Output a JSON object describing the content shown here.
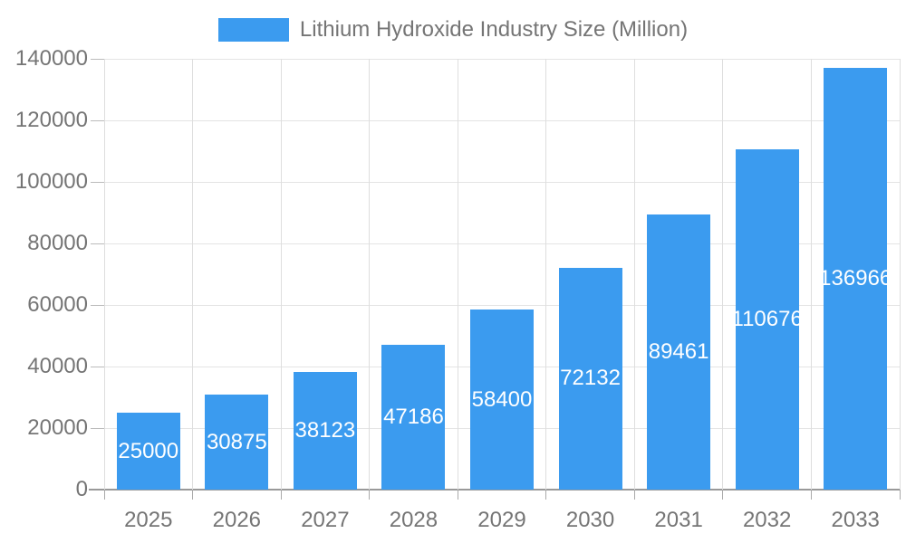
{
  "chart_data": {
    "type": "bar",
    "title": "Lithium Hydroxide Industry Size (Million)",
    "categories": [
      "2025",
      "2026",
      "2027",
      "2028",
      "2029",
      "2030",
      "2031",
      "2032",
      "2033"
    ],
    "values": [
      25000,
      30875,
      38123,
      47186,
      58400,
      72132,
      89461,
      110676,
      136966
    ],
    "xlabel": "",
    "ylabel": "",
    "ylim": [
      0,
      140000
    ],
    "ytick_step": 20000,
    "yticks": [
      0,
      20000,
      40000,
      60000,
      80000,
      100000,
      120000,
      140000
    ],
    "grid": true,
    "legend_position": "top-center",
    "value_labels": "inside-center"
  },
  "colors": {
    "bar": "#3B9BEF",
    "h_gridline": "#e4e4e4",
    "v_gridline": "#dedede",
    "axis_line": "#999999",
    "y_tick": "#bbbbbb",
    "x_tick": "#aaaaaa",
    "axis_text": "#757575",
    "bar_label_text": "#ffffff",
    "background": "#ffffff"
  }
}
